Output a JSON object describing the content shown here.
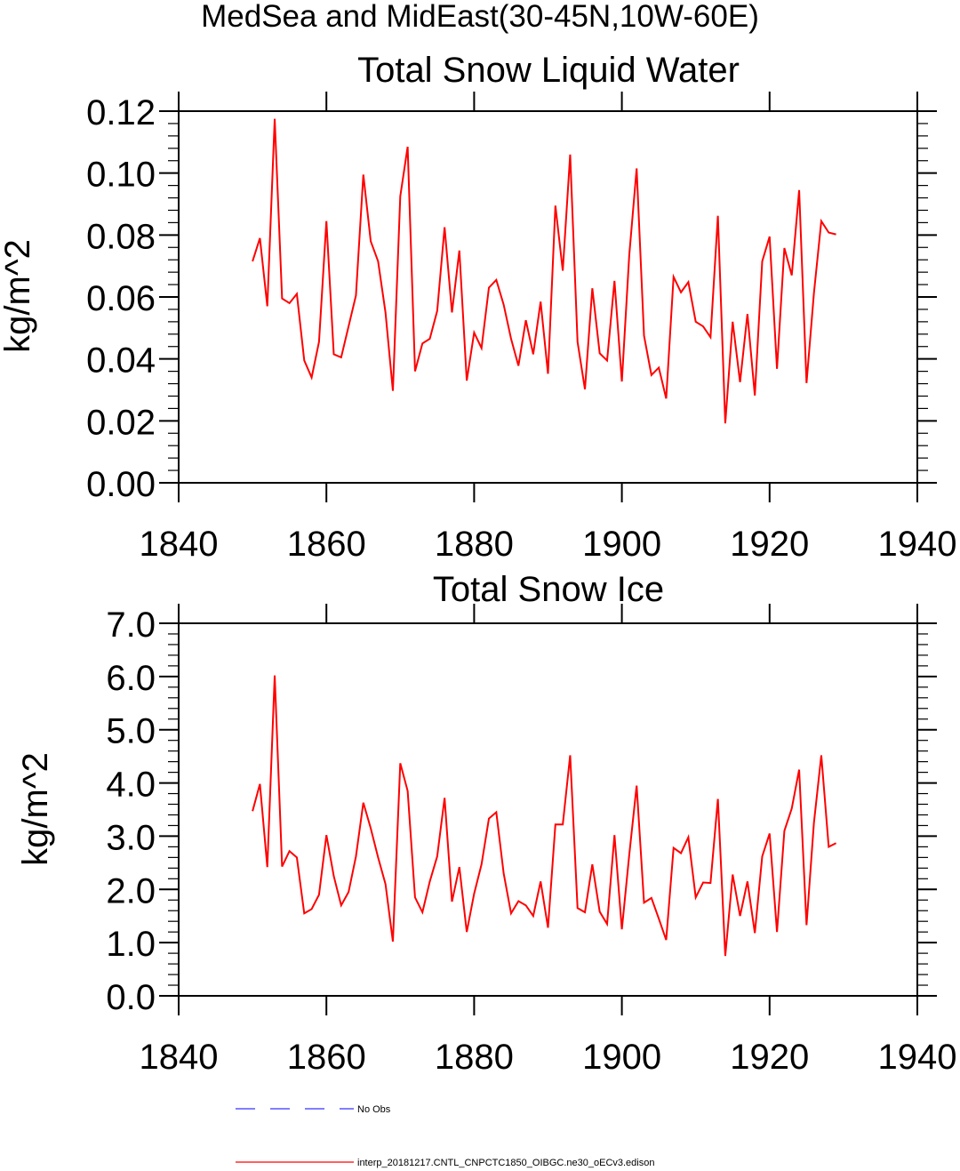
{
  "figure_title": "MedSea and MidEast(30-45N,10W-60E)",
  "legend": {
    "obs_label": "No Obs",
    "obs_color": "#3333ff",
    "model_label": "interp_20181217.CNTL_CNPCTC1850_OIBGC.ne30_oECv3.edison",
    "model_color": "#ff0000"
  },
  "chart_data": [
    {
      "type": "line",
      "title": "Total Snow Liquid Water",
      "xlabel": "",
      "ylabel": "kg/m^2",
      "xlim": [
        1840,
        1940
      ],
      "ylim": [
        0.0,
        0.12
      ],
      "xticks": [
        1840,
        1860,
        1880,
        1900,
        1920,
        1940
      ],
      "xtick_labels": [
        "1840",
        "1860",
        "1880",
        "1900",
        "1920",
        "1940"
      ],
      "yticks": [
        0.0,
        0.02,
        0.04,
        0.06,
        0.08,
        0.1,
        0.12
      ],
      "ytick_labels": [
        "0.00",
        "0.02",
        "0.04",
        "0.06",
        "0.08",
        "0.10",
        "0.12"
      ],
      "x_start": 1850,
      "series": [
        {
          "name": "interp_20181217.CNTL_CNPCTC1850_OIBGC.ne30_oECv3.edison",
          "color": "#ff0000",
          "values": [
            0.0715,
            0.079,
            0.057,
            0.1175,
            0.0595,
            0.058,
            0.061,
            0.0395,
            0.034,
            0.0455,
            0.0845,
            0.0415,
            0.0405,
            0.0505,
            0.0605,
            0.0995,
            0.078,
            0.0715,
            0.055,
            0.0297,
            0.0925,
            0.1085,
            0.036,
            0.045,
            0.0465,
            0.0555,
            0.0825,
            0.055,
            0.075,
            0.033,
            0.0485,
            0.0435,
            0.063,
            0.0655,
            0.0575,
            0.0465,
            0.0378,
            0.0525,
            0.0415,
            0.0585,
            0.0352,
            0.0895,
            0.0685,
            0.106,
            0.0455,
            0.0302,
            0.0628,
            0.0418,
            0.0395,
            0.0652,
            0.0327,
            0.0735,
            0.1015,
            0.0475,
            0.0348,
            0.0372,
            0.0272,
            0.0665,
            0.0615,
            0.0648,
            0.052,
            0.0505,
            0.047,
            0.0862,
            0.0192,
            0.052,
            0.0325,
            0.0545,
            0.0282,
            0.0715,
            0.0795,
            0.0368,
            0.0758,
            0.067,
            0.0945,
            0.0322,
            0.0612,
            0.0845,
            0.0808,
            0.0802
          ]
        }
      ]
    },
    {
      "type": "line",
      "title": "Total Snow Ice",
      "xlabel": "",
      "ylabel": "kg/m^2",
      "xlim": [
        1840,
        1940
      ],
      "ylim": [
        0.0,
        7.0
      ],
      "xticks": [
        1840,
        1860,
        1880,
        1900,
        1920,
        1940
      ],
      "xtick_labels": [
        "1840",
        "1860",
        "1880",
        "1900",
        "1920",
        "1940"
      ],
      "yticks": [
        0.0,
        1.0,
        2.0,
        3.0,
        4.0,
        5.0,
        6.0,
        7.0
      ],
      "ytick_labels": [
        "0.0",
        "1.0",
        "2.0",
        "3.0",
        "4.0",
        "5.0",
        "6.0",
        "7.0"
      ],
      "x_start": 1850,
      "series": [
        {
          "name": "interp_20181217.CNTL_CNPCTC1850_OIBGC.ne30_oECv3.edison",
          "color": "#ff0000",
          "values": [
            3.47,
            3.98,
            2.42,
            6.02,
            2.43,
            2.72,
            2.6,
            1.55,
            1.63,
            1.9,
            3.02,
            2.25,
            1.7,
            1.95,
            2.62,
            3.63,
            3.15,
            2.6,
            2.1,
            1.02,
            4.37,
            3.85,
            1.85,
            1.57,
            2.15,
            2.62,
            3.72,
            1.77,
            2.42,
            1.2,
            1.92,
            2.47,
            3.33,
            3.45,
            2.3,
            1.55,
            1.78,
            1.7,
            1.5,
            2.15,
            1.28,
            3.22,
            3.22,
            4.52,
            1.65,
            1.57,
            2.47,
            1.58,
            1.35,
            3.02,
            1.25,
            2.65,
            3.95,
            1.75,
            1.84,
            1.45,
            1.05,
            2.78,
            2.68,
            2.98,
            1.85,
            2.13,
            2.12,
            3.7,
            0.75,
            2.28,
            1.5,
            2.15,
            1.18,
            2.62,
            3.05,
            1.2,
            3.1,
            3.52,
            4.25,
            1.33,
            3.25,
            4.52,
            2.8,
            2.87
          ]
        }
      ]
    }
  ]
}
